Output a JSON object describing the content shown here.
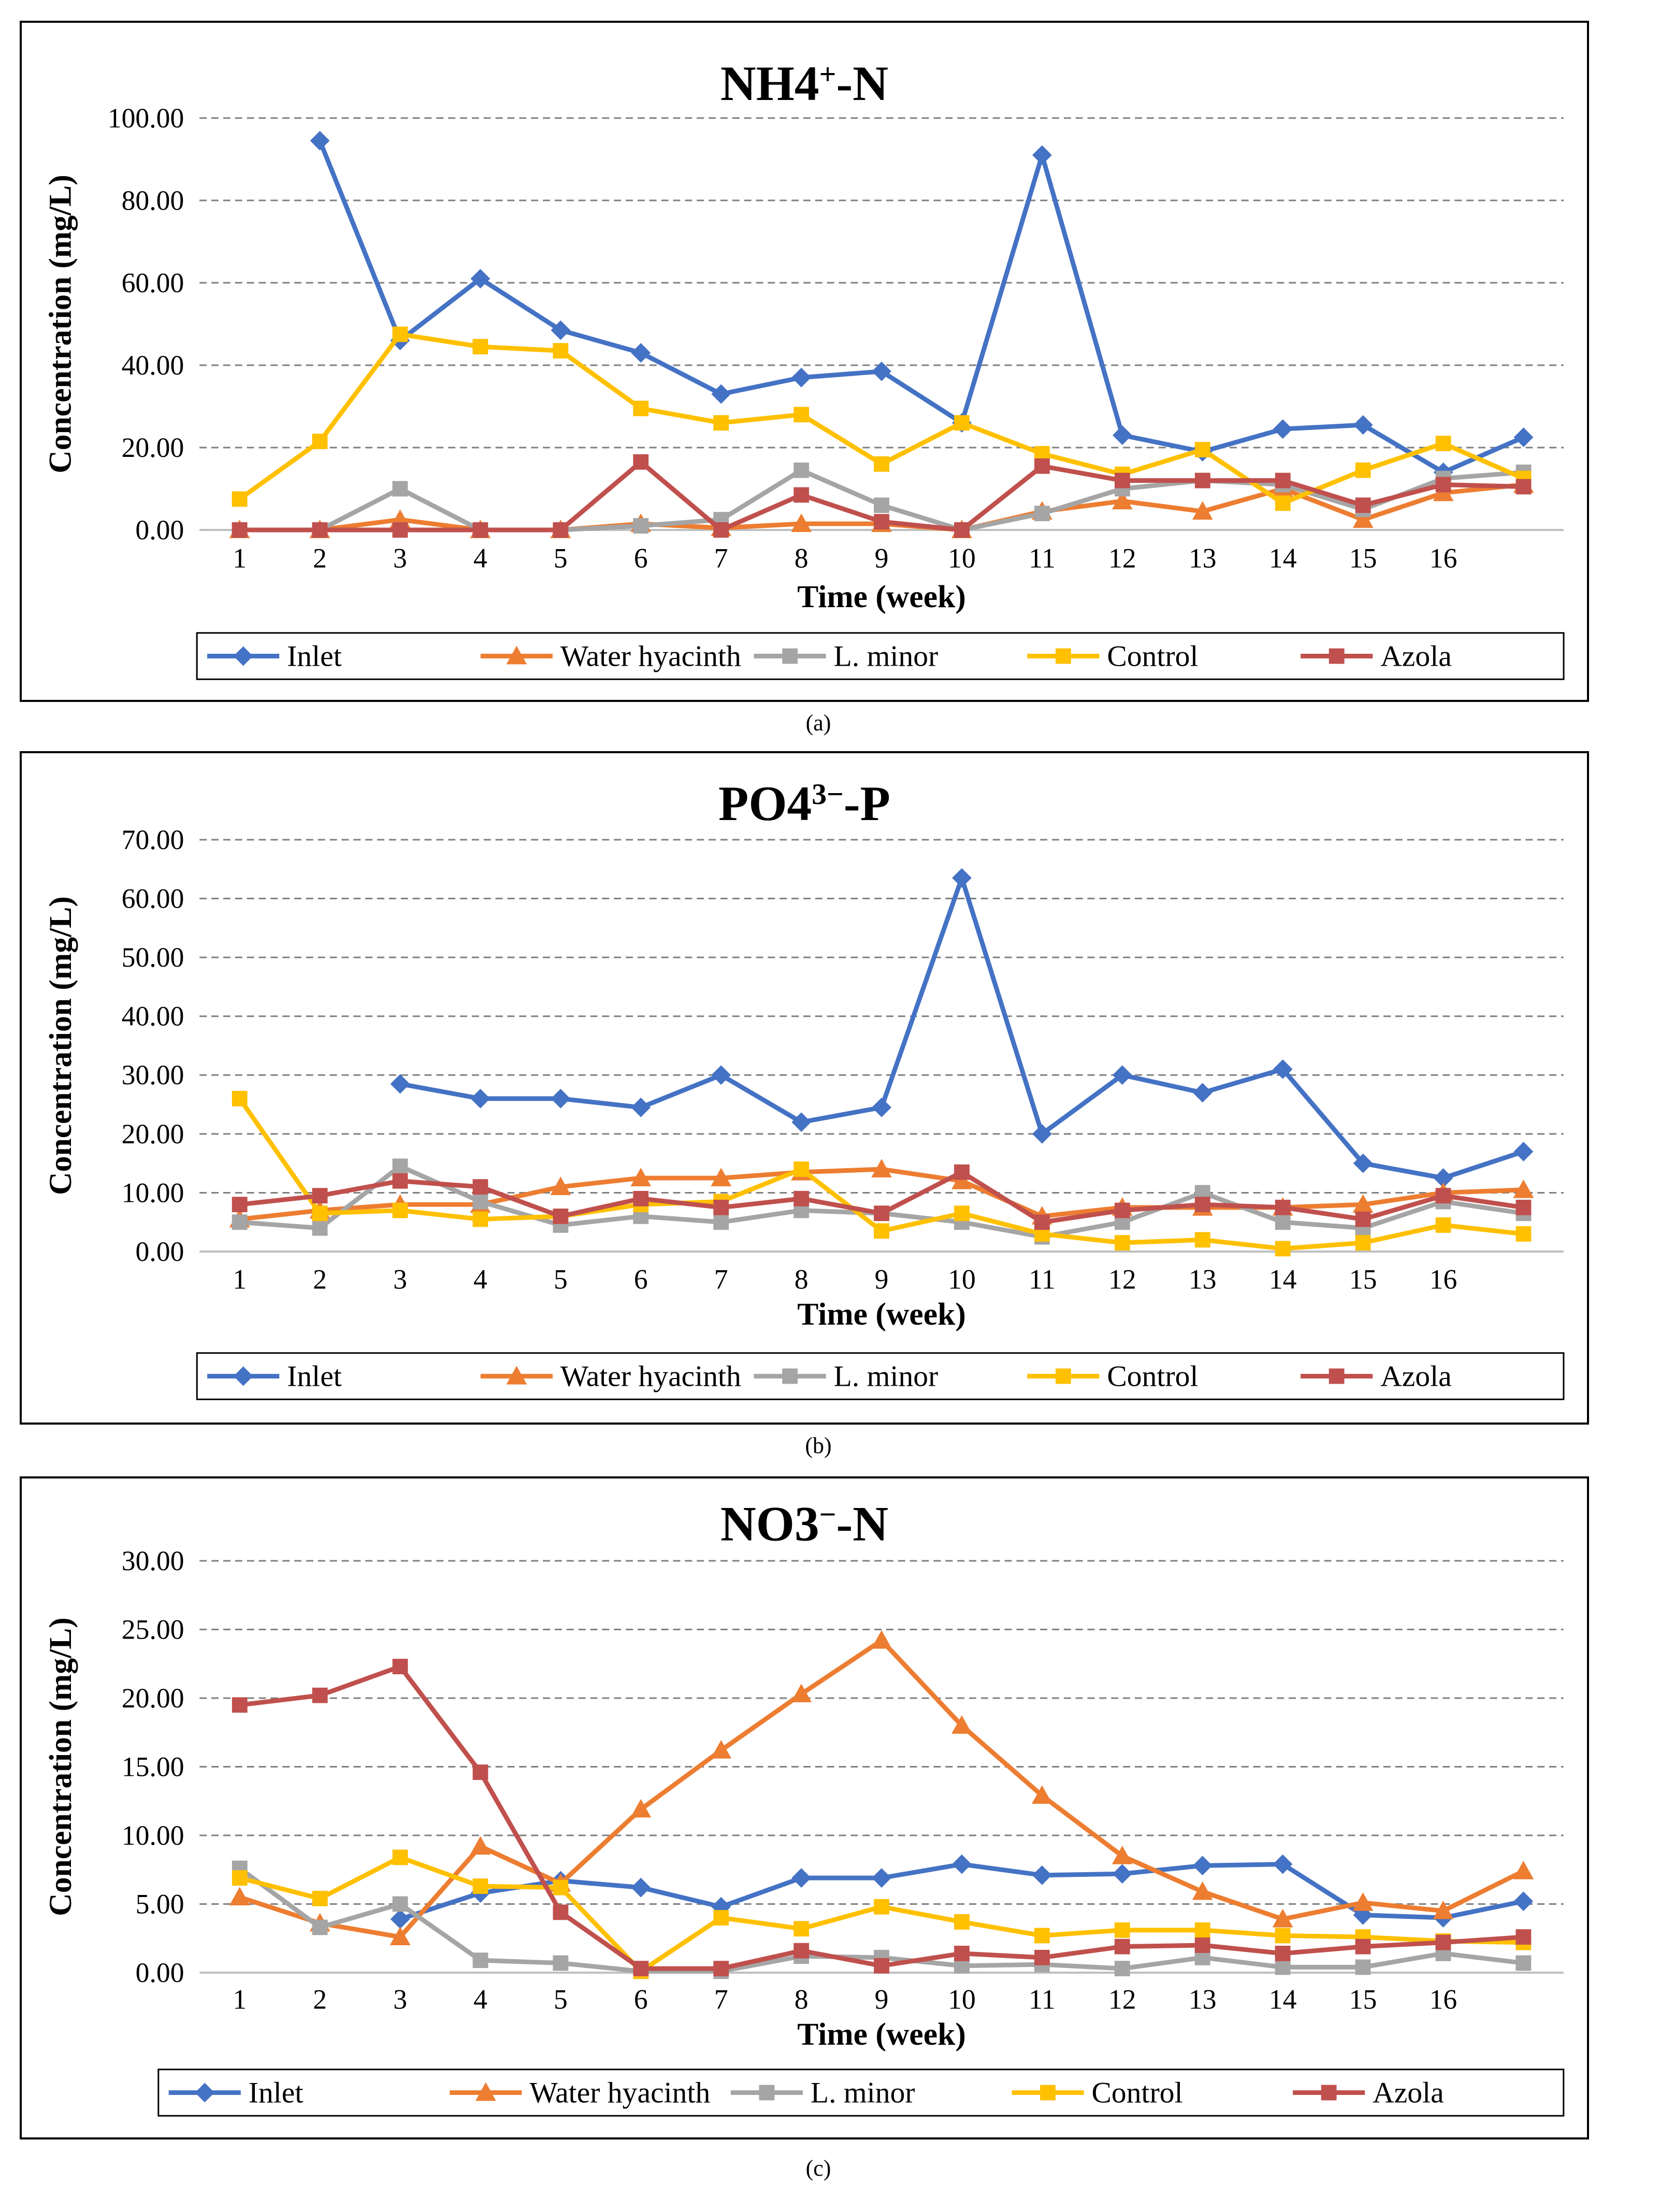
{
  "charts": [
    {
      "caption": "(a)",
      "chart_data": {
        "type": "line",
        "title_main": "NH4",
        "title_sup": "+",
        "title_rest": "-N",
        "xlabel": "Time (week)",
        "ylabel": "Concentration (mg/L)",
        "ylim": [
          0,
          100
        ],
        "ytick_step": 20,
        "ytick_labels": [
          "0.00",
          "20.00",
          "40.00",
          "60.00",
          "80.00",
          "100.00"
        ],
        "categories": [
          "1",
          "2",
          "3",
          "4",
          "5",
          "6",
          "7",
          "8",
          "9",
          "10",
          "11",
          "12",
          "13",
          "14",
          "15",
          "16",
          ""
        ],
        "grid": true,
        "legend_position": "bottom",
        "series": [
          {
            "name": "Inlet",
            "color": "#4472C4",
            "marker": "diamond",
            "values": [
              null,
              94.5,
              46,
              61,
              48.5,
              43,
              33,
              37,
              38.5,
              26,
              91,
              23,
              19,
              24.5,
              25.5,
              14,
              22.5
            ]
          },
          {
            "name": "Water hyacinth",
            "color": "#ED7D31",
            "marker": "triangle",
            "values": [
              0,
              0,
              2.5,
              0,
              0,
              1.5,
              0.5,
              1.5,
              1.5,
              0,
              4.5,
              7,
              4.5,
              10,
              2.5,
              9,
              11
            ]
          },
          {
            "name": "L. minor",
            "color": "#A5A5A5",
            "marker": "square",
            "values": [
              0,
              0,
              10,
              0,
              0,
              1,
              2.5,
              14.5,
              6,
              0,
              4,
              10,
              12,
              11,
              5,
              12.5,
              14
            ]
          },
          {
            "name": "Control",
            "color": "#FFC000",
            "marker": "square",
            "values": [
              7.5,
              21.5,
              47.5,
              44.5,
              43.5,
              29.5,
              26,
              28,
              16,
              26,
              18.5,
              13.5,
              19.5,
              6.5,
              14.5,
              21,
              12.5
            ]
          },
          {
            "name": "Azola",
            "color": "#C0504D",
            "marker": "square",
            "values": [
              0,
              0,
              0,
              0,
              0,
              16.5,
              0,
              8.5,
              2,
              0,
              15.5,
              12,
              12,
              12,
              6,
              11,
              10.5
            ]
          }
        ]
      }
    },
    {
      "caption": "(b)",
      "chart_data": {
        "type": "line",
        "title_main": "PO4",
        "title_sup": "3−",
        "title_rest": "-P",
        "xlabel": "Time (week)",
        "ylabel": "Concentration (mg/L)",
        "ylim": [
          0,
          70
        ],
        "ytick_step": 10,
        "ytick_labels": [
          "0.00",
          "10.00",
          "20.00",
          "30.00",
          "40.00",
          "50.00",
          "60.00",
          "70.00"
        ],
        "categories": [
          "1",
          "2",
          "3",
          "4",
          "5",
          "6",
          "7",
          "8",
          "9",
          "10",
          "11",
          "12",
          "13",
          "14",
          "15",
          "16",
          ""
        ],
        "grid": true,
        "legend_position": "bottom",
        "series": [
          {
            "name": "Inlet",
            "color": "#4472C4",
            "marker": "diamond",
            "values": [
              null,
              null,
              28.5,
              26,
              26,
              24.5,
              30,
              22,
              24.5,
              63.5,
              20,
              30,
              27,
              31,
              15,
              12.5,
              17
            ]
          },
          {
            "name": "Water hyacinth",
            "color": "#ED7D31",
            "marker": "triangle",
            "values": [
              5.5,
              7,
              8,
              8,
              11,
              12.5,
              12.5,
              13.5,
              14,
              12,
              6,
              7.5,
              7.5,
              7.5,
              8,
              10,
              10.5
            ]
          },
          {
            "name": "L. minor",
            "color": "#A5A5A5",
            "marker": "square",
            "values": [
              5,
              4,
              14.5,
              8.5,
              4.5,
              6,
              5,
              7,
              6.5,
              5,
              2.5,
              5,
              10,
              5,
              4,
              8.5,
              6.5
            ]
          },
          {
            "name": "Control",
            "color": "#FFC000",
            "marker": "square",
            "values": [
              26,
              6.5,
              7,
              5.5,
              6,
              8,
              8.5,
              14,
              3.5,
              6.5,
              3,
              1.5,
              2,
              0.5,
              1.5,
              4.5,
              3
            ]
          },
          {
            "name": "Azola",
            "color": "#C0504D",
            "marker": "square",
            "values": [
              8,
              9.5,
              12,
              11,
              6,
              9,
              7.5,
              9,
              6.5,
              13.5,
              5,
              7,
              8,
              7.5,
              5.5,
              9.5,
              7.5
            ]
          }
        ]
      }
    },
    {
      "caption": "(c)",
      "chart_data": {
        "type": "line",
        "title_main": "NO3",
        "title_sup": "−",
        "title_rest": "-N",
        "xlabel": "Time (week)",
        "ylabel": "Concentration (mg/L)",
        "ylim": [
          0,
          30
        ],
        "ytick_step": 5,
        "ytick_labels": [
          "0.00",
          "5.00",
          "10.00",
          "15.00",
          "20.00",
          "25.00",
          "30.00"
        ],
        "categories": [
          "1",
          "2",
          "3",
          "4",
          "5",
          "6",
          "7",
          "8",
          "9",
          "10",
          "11",
          "12",
          "13",
          "14",
          "15",
          "16",
          ""
        ],
        "grid": true,
        "legend_position": "bottom",
        "series": [
          {
            "name": "Inlet",
            "color": "#4472C4",
            "marker": "diamond",
            "values": [
              null,
              null,
              3.9,
              5.8,
              6.7,
              6.2,
              4.8,
              6.9,
              6.9,
              7.9,
              7.1,
              7.2,
              7.8,
              7.9,
              4.2,
              4.0,
              5.2
            ]
          },
          {
            "name": "Water hyacinth",
            "color": "#ED7D31",
            "marker": "triangle",
            "values": [
              5.5,
              3.6,
              2.6,
              9.2,
              6.5,
              11.9,
              16.2,
              20.3,
              24.2,
              18.0,
              12.9,
              8.5,
              5.9,
              3.9,
              5.1,
              4.5,
              7.4
            ]
          },
          {
            "name": "L. minor",
            "color": "#A5A5A5",
            "marker": "square",
            "values": [
              7.6,
              3.3,
              5.0,
              0.9,
              0.7,
              0.1,
              0.1,
              1.2,
              1.1,
              0.5,
              0.6,
              0.3,
              1.1,
              0.4,
              0.4,
              1.4,
              0.7
            ]
          },
          {
            "name": "Control",
            "color": "#FFC000",
            "marker": "square",
            "values": [
              6.9,
              5.4,
              8.4,
              6.3,
              6.2,
              0.1,
              4.0,
              3.2,
              4.8,
              3.7,
              2.7,
              3.1,
              3.1,
              2.7,
              2.6,
              2.3,
              2.2
            ]
          },
          {
            "name": "Azola",
            "color": "#C0504D",
            "marker": "square",
            "values": [
              19.5,
              20.2,
              22.3,
              14.6,
              4.4,
              0.3,
              0.3,
              1.6,
              0.5,
              1.4,
              1.1,
              1.9,
              2.0,
              1.4,
              1.9,
              2.2,
              2.6
            ]
          }
        ]
      }
    }
  ]
}
